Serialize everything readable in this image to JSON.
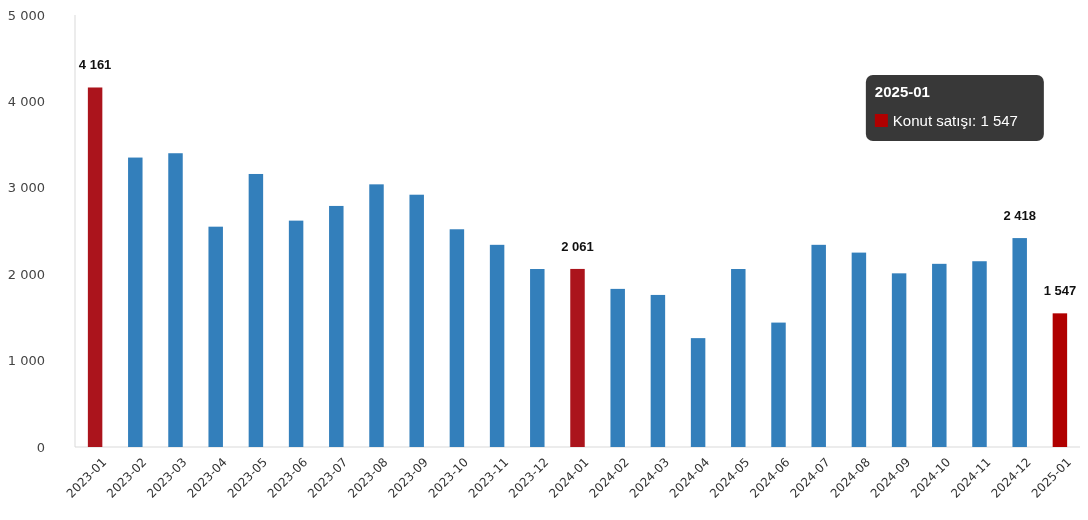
{
  "chart_data": {
    "type": "bar",
    "categories": [
      "2023-01",
      "2023-02",
      "2023-03",
      "2023-04",
      "2023-05",
      "2023-06",
      "2023-07",
      "2023-08",
      "2023-09",
      "2023-10",
      "2023-11",
      "2023-12",
      "2024-01",
      "2024-02",
      "2024-03",
      "2024-04",
      "2024-05",
      "2024-06",
      "2024-07",
      "2024-08",
      "2024-09",
      "2024-10",
      "2024-11",
      "2024-12",
      "2025-01"
    ],
    "series": [
      {
        "values": [
          4161,
          3350,
          3400,
          2550,
          3160,
          2620,
          2790,
          3040,
          2920,
          2520,
          2340,
          2060,
          2061,
          1830,
          1760,
          1260,
          2060,
          1440,
          2340,
          2250,
          2010,
          2120,
          2150,
          2418,
          1547
        ],
        "colors": [
          "#ab141c",
          "#337fbb",
          "#337fbb",
          "#337fbb",
          "#337fbb",
          "#337fbb",
          "#337fbb",
          "#337fbb",
          "#337fbb",
          "#337fbb",
          "#337fbb",
          "#337fbb",
          "#ab141c",
          "#337fbb",
          "#337fbb",
          "#337fbb",
          "#337fbb",
          "#337fbb",
          "#337fbb",
          "#337fbb",
          "#337fbb",
          "#337fbb",
          "#337fbb",
          "#337fbb",
          "#b00000"
        ],
        "value_labels": [
          "4 161",
          null,
          null,
          null,
          null,
          null,
          null,
          null,
          null,
          null,
          null,
          null,
          "2 061",
          null,
          null,
          null,
          null,
          null,
          null,
          null,
          null,
          null,
          null,
          "2 418",
          "1 547"
        ]
      }
    ],
    "ylim": [
      0,
      5000
    ],
    "yticks": [
      {
        "value": 0,
        "label": "0"
      },
      {
        "value": 1000,
        "label": "1 000"
      },
      {
        "value": 2000,
        "label": "2 000"
      },
      {
        "value": 3000,
        "label": "3 000"
      },
      {
        "value": 4000,
        "label": "4 000"
      },
      {
        "value": 5000,
        "label": "5 000"
      }
    ],
    "grid": false,
    "annotations": [
      "2025-01",
      "Konut satışı: 1 547"
    ]
  }
}
